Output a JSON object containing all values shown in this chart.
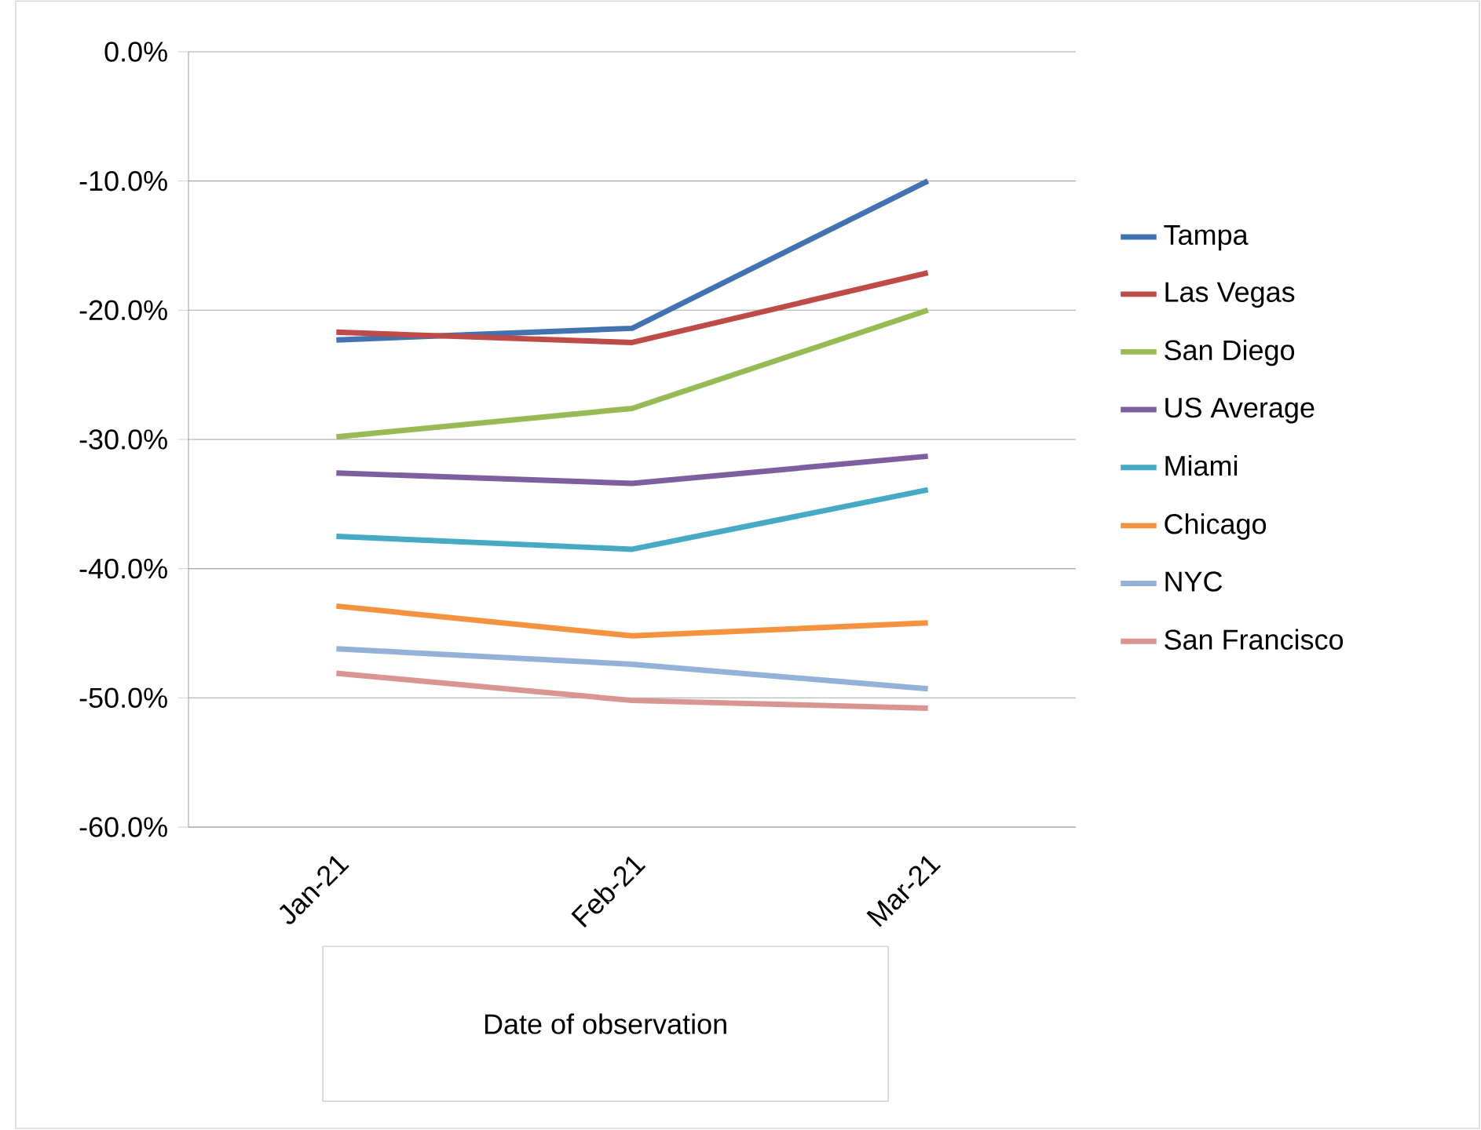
{
  "chart_data": {
    "type": "line",
    "categories": [
      "Jan-21",
      "Feb-21",
      "Mar-21"
    ],
    "series": [
      {
        "name": "Tampa",
        "color": "#4372b0",
        "values": [
          -22.3,
          -21.4,
          -10.0
        ]
      },
      {
        "name": "Las Vegas",
        "color": "#be4b48",
        "values": [
          -21.7,
          -22.5,
          -17.1
        ]
      },
      {
        "name": "San Diego",
        "color": "#98b954",
        "values": [
          -29.8,
          -27.6,
          -20.0
        ]
      },
      {
        "name": "US Average",
        "color": "#7d5fa0",
        "values": [
          -32.6,
          -33.4,
          -31.3
        ]
      },
      {
        "name": "Miami",
        "color": "#46aac4",
        "values": [
          -37.5,
          -38.5,
          -33.9
        ]
      },
      {
        "name": "Chicago",
        "color": "#f59240",
        "values": [
          -42.9,
          -45.2,
          -44.2
        ]
      },
      {
        "name": "NYC",
        "color": "#94b1d8",
        "values": [
          -46.2,
          -47.4,
          -49.3
        ]
      },
      {
        "name": "San Francisco",
        "color": "#d99592",
        "values": [
          -48.1,
          -50.2,
          -50.8
        ]
      }
    ],
    "xlabel": "Date of observation",
    "ylim": [
      -60,
      0
    ],
    "yticks": [
      {
        "value": 0,
        "label": "0.0%"
      },
      {
        "value": -10,
        "label": "-10.0%"
      },
      {
        "value": -20,
        "label": "-20.0%"
      },
      {
        "value": -30,
        "label": "-30.0%"
      },
      {
        "value": -40,
        "label": "-40.0%"
      },
      {
        "value": -50,
        "label": "-50.0%"
      },
      {
        "value": -60,
        "label": "-60.0%"
      }
    ],
    "grid": "y",
    "legend": "right",
    "marker": "none"
  }
}
